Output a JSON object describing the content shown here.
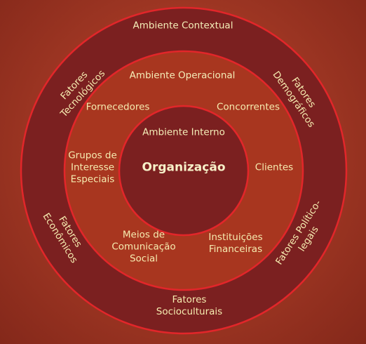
{
  "diagram": {
    "outer_ring": {
      "title": "Ambiente Contextual",
      "items": {
        "tecnologicos": "Fatores\nTecnológicos",
        "demograficos": "Fatores\nDemográficos",
        "economicos": "Fatores\nEconômicos",
        "politico_legais": "Fatores Político-\nlegais",
        "socioculturais": "Fatores\nSocioculturais"
      }
    },
    "middle_ring": {
      "title": "Ambiente Operacional",
      "items": {
        "fornecedores": "Fornecedores",
        "concorrentes": "Concorrentes",
        "grupos": "Grupos de\nInteresse\nEspeciais",
        "clientes": "Clientes",
        "meios": "Meios de\nComunicação\nSocial",
        "instituicoes": "Instituições\nFinanceiras"
      }
    },
    "inner_circle": {
      "title": "Ambiente Interno",
      "center": "Organização"
    },
    "colors": {
      "background": "#9e3623",
      "outer_ring": "#7b2020",
      "middle_ring": "#a8361f",
      "inner_circle": "#7b2020",
      "stroke": "#e2262a",
      "text": "#f6ecb0"
    }
  }
}
